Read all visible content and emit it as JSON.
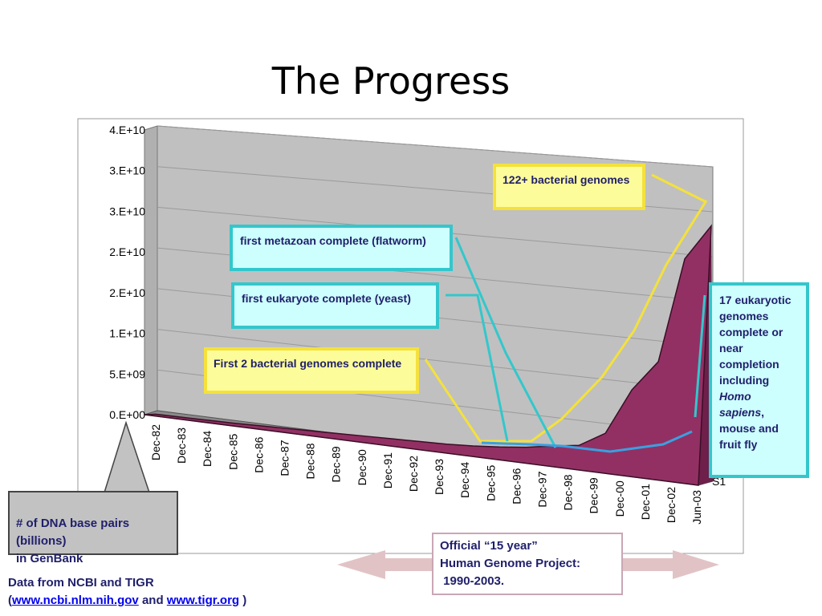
{
  "title": "The Progress",
  "chart_data": {
    "type": "area",
    "categories": [
      "Dec-82",
      "Dec-83",
      "Dec-84",
      "Dec-85",
      "Dec-86",
      "Dec-87",
      "Dec-88",
      "Dec-89",
      "Dec-90",
      "Dec-91",
      "Dec-92",
      "Dec-93",
      "Dec-94",
      "Dec-95",
      "Dec-96",
      "Dec-97",
      "Dec-98",
      "Dec-99",
      "Dec-00",
      "Dec-01",
      "Dec-02",
      "Jun-03"
    ],
    "values": [
      68000000.0,
      100000000.0,
      150000000.0,
      200000000.0,
      300000000.0,
      400000000.0,
      500000000.0,
      600000000.0,
      700000000.0,
      800000000.0,
      900000000.0,
      1000000000.0,
      1200000000.0,
      1500000000.0,
      1900000000.0,
      2500000000.0,
      3000000000.0,
      5000000000.0,
      11000000000.0,
      15000000000.0,
      28500000000.0,
      33000000000.0
    ],
    "y_tick_labels": [
      "0.E+00",
      "5.E+09",
      "1.E+10",
      "2.E+10",
      "2.E+10",
      "3.E+10",
      "3.E+10",
      "4.E+10"
    ],
    "series_label": "S1",
    "ylim": [
      0,
      40000000000
    ],
    "fill_color": "#923064",
    "wall_color": "#c0c0c0"
  },
  "callouts": {
    "bacterial_122": "122+ bacterial genomes",
    "metazoan": "first metazoan complete (flatworm)",
    "eukaryote": "first eukaryote complete (yeast)",
    "first_bacterial": "First 2 bacterial genomes complete",
    "eukaryotic_17_pre": "17 eukaryotic genomes complete or near completion including ",
    "eukaryotic_17_italic": "Homo sapiens",
    "eukaryotic_17_post": ", mouse and fruit fly",
    "base_pairs": "# of DNA base pairs (billions)\n in GenBank"
  },
  "footer": {
    "line1": "Data from NCBI and TIGR",
    "open_paren": "(",
    "link1": "www.ncbi.nlm.nih.gov",
    "and": " and ",
    "link2": "www.tigr.org",
    "close_paren": " )"
  },
  "hgp": {
    "line1": "Official “15 year”",
    "line2": "Human Genome Project:",
    "line3": " 1990-2003."
  },
  "colors": {
    "yellow_line": "#f4e13c",
    "cyan_line": "#33c7cc",
    "blue_line": "#3aa0e0",
    "arrow": "#e1c3c6"
  }
}
